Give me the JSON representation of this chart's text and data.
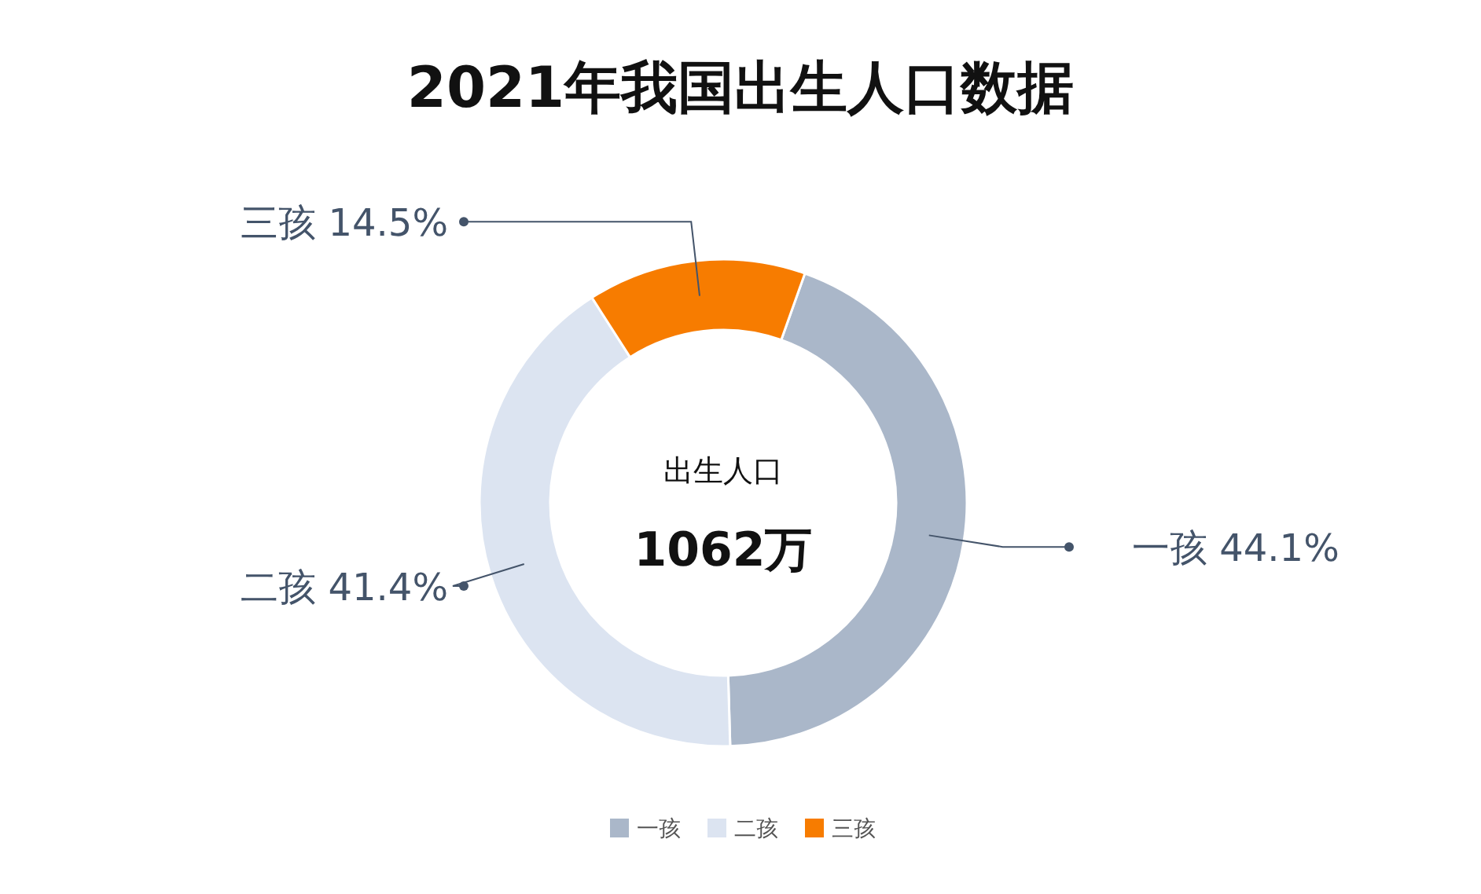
{
  "chart_data": {
    "type": "donut",
    "title": "2021年我国出生人口数据",
    "categories": [
      "一孩",
      "二孩",
      "三孩"
    ],
    "values": [
      44.1,
      41.4,
      14.5
    ],
    "colors": [
      "#aab7c9",
      "#dce4f1",
      "#f77c00"
    ],
    "value_labels": [
      "44.1%",
      "41.4%",
      "14.5%"
    ],
    "annotations": [
      "出生人口",
      "1062万"
    ],
    "legend": "bottom"
  }
}
